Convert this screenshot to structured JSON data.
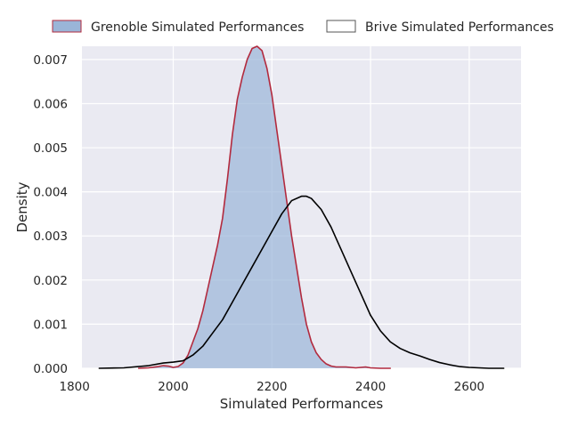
{
  "chart_data": {
    "type": "area",
    "xlabel": "Simulated Performances",
    "ylabel": "Density",
    "xlim": [
      1815,
      2705
    ],
    "ylim": [
      0,
      0.0073
    ],
    "x_ticks": [
      1800,
      2000,
      2200,
      2400,
      2600
    ],
    "x_tick_labels": [
      "1800",
      "2000",
      "2200",
      "2400",
      "2600"
    ],
    "y_ticks": [
      0,
      0.001,
      0.002,
      0.003,
      0.004,
      0.005,
      0.006,
      0.007
    ],
    "y_tick_labels": [
      "0.000",
      "0.001",
      "0.002",
      "0.003",
      "0.004",
      "0.005",
      "0.006",
      "0.007"
    ],
    "grid": true,
    "legend_position": "top",
    "series": [
      {
        "name": "Grenoble Simulated Performances",
        "style": "filled",
        "fill_color": "#9ab5d8",
        "line_color": "#b22a3e",
        "x": [
          1930,
          1950,
          1970,
          1980,
          1990,
          2000,
          2010,
          2020,
          2030,
          2040,
          2050,
          2060,
          2070,
          2080,
          2090,
          2100,
          2110,
          2120,
          2130,
          2140,
          2150,
          2160,
          2170,
          2180,
          2185,
          2190,
          2200,
          2210,
          2220,
          2230,
          2240,
          2250,
          2260,
          2270,
          2280,
          2290,
          2300,
          2310,
          2320,
          2330,
          2340,
          2350,
          2360,
          2370,
          2380,
          2390,
          2400,
          2420,
          2440
        ],
        "y": [
          0,
          1e-05,
          4e-05,
          6e-05,
          5e-05,
          2e-05,
          4e-05,
          0.00012,
          0.0003,
          0.0006,
          0.0009,
          0.0013,
          0.0018,
          0.0023,
          0.0028,
          0.0034,
          0.0043,
          0.0053,
          0.0061,
          0.0066,
          0.007,
          0.00725,
          0.0073,
          0.0072,
          0.007,
          0.0068,
          0.0062,
          0.0054,
          0.0046,
          0.0038,
          0.003,
          0.0023,
          0.0016,
          0.001,
          0.0006,
          0.00035,
          0.0002,
          0.0001,
          5e-05,
          3e-05,
          3e-05,
          3e-05,
          2e-05,
          1e-05,
          2e-05,
          3e-05,
          1e-05,
          0,
          0
        ]
      },
      {
        "name": "Brive Simulated Performances",
        "style": "line",
        "line_color": "#000000",
        "x": [
          1850,
          1900,
          1950,
          1980,
          2000,
          2020,
          2040,
          2060,
          2080,
          2100,
          2120,
          2140,
          2160,
          2180,
          2200,
          2220,
          2240,
          2260,
          2270,
          2280,
          2300,
          2320,
          2340,
          2360,
          2380,
          2400,
          2420,
          2440,
          2460,
          2480,
          2500,
          2520,
          2540,
          2560,
          2580,
          2600,
          2620,
          2640,
          2670
        ],
        "y": [
          0,
          1e-05,
          6e-05,
          0.00012,
          0.00014,
          0.00017,
          0.0003,
          0.0005,
          0.0008,
          0.0011,
          0.0015,
          0.0019,
          0.0023,
          0.0027,
          0.0031,
          0.0035,
          0.0038,
          0.0039,
          0.0039,
          0.00385,
          0.0036,
          0.0032,
          0.0027,
          0.0022,
          0.0017,
          0.0012,
          0.00085,
          0.0006,
          0.00045,
          0.00035,
          0.00028,
          0.0002,
          0.00013,
          8e-05,
          4e-05,
          2e-05,
          1e-05,
          0,
          0
        ]
      }
    ]
  }
}
